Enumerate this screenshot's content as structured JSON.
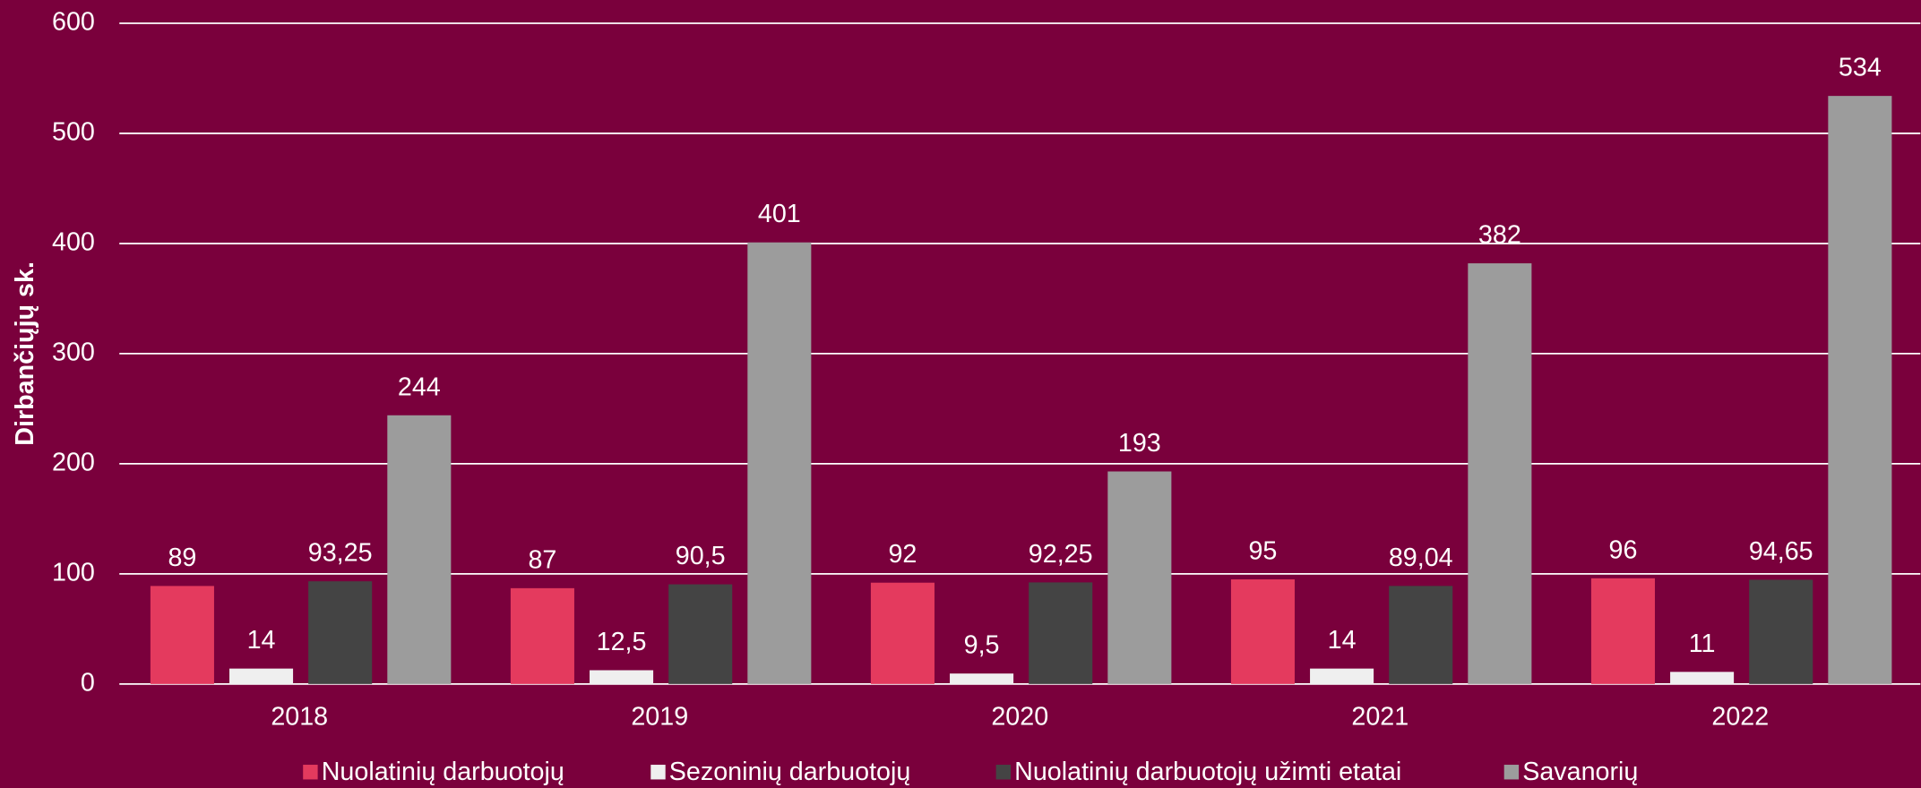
{
  "chart_data": {
    "type": "bar",
    "y_label": "Dirbančiųjų sk.",
    "categories": [
      "2018",
      "2019",
      "2020",
      "2021",
      "2022"
    ],
    "series": [
      {
        "name": "Nuolatinių darbuotojų",
        "color": "#e43a5e",
        "values": [
          89,
          87,
          92,
          95,
          96
        ]
      },
      {
        "name": "Sezoninių darbuotojų",
        "color": "#efefef",
        "values": [
          14,
          12.5,
          9.5,
          14,
          11
        ],
        "value_labels": [
          "14",
          "12,5",
          "9,5",
          "14",
          "11"
        ]
      },
      {
        "name": "Nuolatinių darbuotojų užimti etatai",
        "color": "#444444",
        "values": [
          93.25,
          90.5,
          92.25,
          89.04,
          94.65
        ],
        "value_labels": [
          "93,25",
          "90,5",
          "92,25",
          "89,04",
          "94,65"
        ]
      },
      {
        "name": "Savanorių",
        "color": "#9c9c9c",
        "values": [
          244,
          401,
          193,
          382,
          534
        ]
      }
    ],
    "ylim": [
      0,
      600
    ],
    "yticks": [
      0,
      100,
      200,
      300,
      400,
      500,
      600
    ],
    "grid": true,
    "legend": "bottom"
  }
}
